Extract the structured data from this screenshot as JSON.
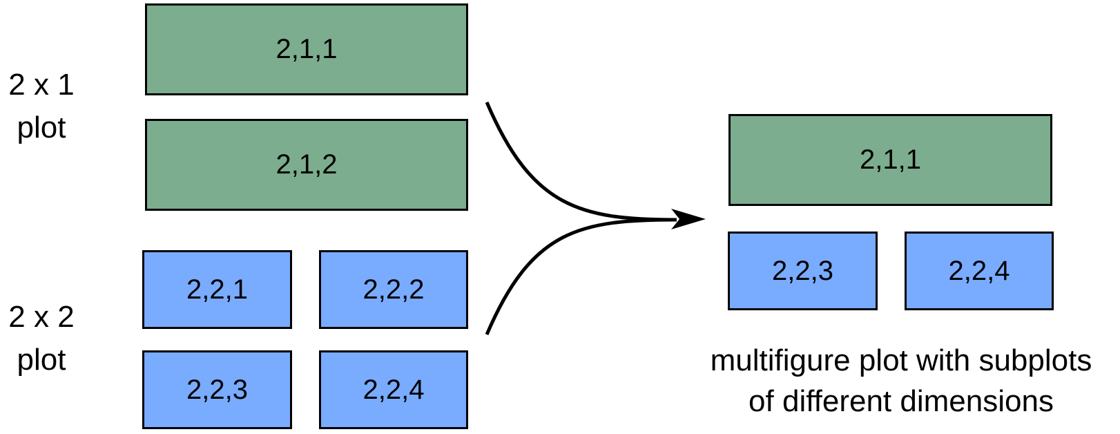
{
  "left": {
    "group_2x1": {
      "label_line1": "2 x 1",
      "label_line2": "plot",
      "panels": [
        "2,1,1",
        "2,1,2"
      ]
    },
    "group_2x2": {
      "label_line1": "2 x 2",
      "label_line2": "plot",
      "panels": [
        "2,2,1",
        "2,2,2",
        "2,2,3",
        "2,2,4"
      ]
    }
  },
  "right": {
    "panels": [
      "2,1,1",
      "2,2,3",
      "2,2,4"
    ],
    "caption_line1": "multifigure plot with subplots",
    "caption_line2": "of different dimensions"
  },
  "colors": {
    "green_panel": "#7BAD8E",
    "blue_panel": "#79ABFF",
    "outline": "#000000"
  }
}
